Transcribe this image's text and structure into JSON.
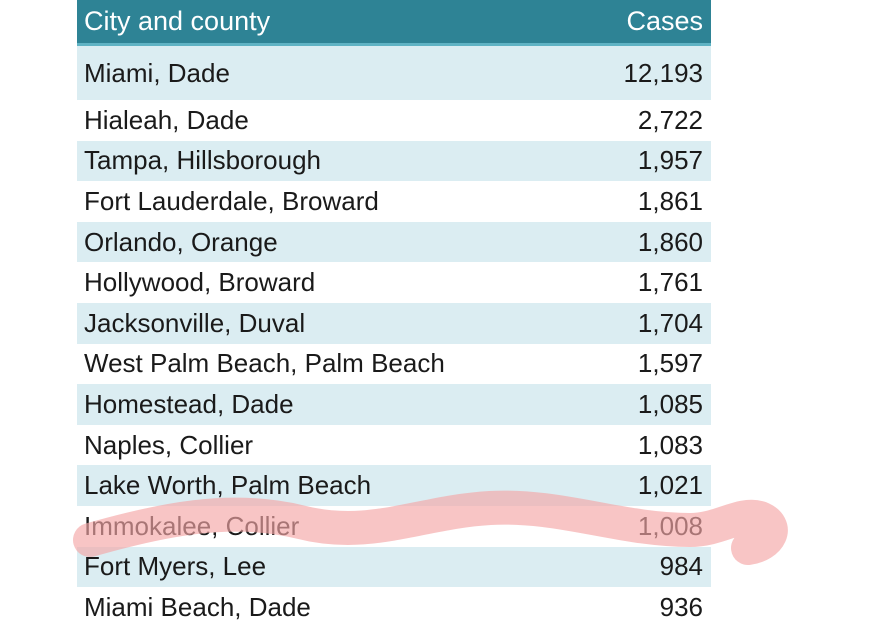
{
  "table": {
    "header": {
      "city_label": "City and county",
      "cases_label": "Cases"
    },
    "rows": [
      {
        "city": "Miami, Dade",
        "cases": "12,193"
      },
      {
        "city": "Hialeah, Dade",
        "cases": "2,722"
      },
      {
        "city": "Tampa, Hillsborough",
        "cases": "1,957"
      },
      {
        "city": "Fort Lauderdale, Broward",
        "cases": "1,861"
      },
      {
        "city": "Orlando, Orange",
        "cases": "1,860"
      },
      {
        "city": "Hollywood, Broward",
        "cases": "1,761"
      },
      {
        "city": "Jacksonville, Duval",
        "cases": "1,704"
      },
      {
        "city": "West Palm Beach, Palm Beach",
        "cases": "1,597"
      },
      {
        "city": "Homestead, Dade",
        "cases": "1,085"
      },
      {
        "city": "Naples, Collier",
        "cases": "1,083"
      },
      {
        "city": "Lake Worth, Palm Beach",
        "cases": "1,021"
      },
      {
        "city": "Immokalee, Collier",
        "cases": "1,008"
      },
      {
        "city": "Fort Myers, Lee",
        "cases": "984"
      },
      {
        "city": "Miami Beach, Dade",
        "cases": "936"
      }
    ]
  },
  "colors": {
    "header_bg": "#2e8395",
    "row_shade": "#dbedf2",
    "highlight": "#f4a6a6"
  }
}
